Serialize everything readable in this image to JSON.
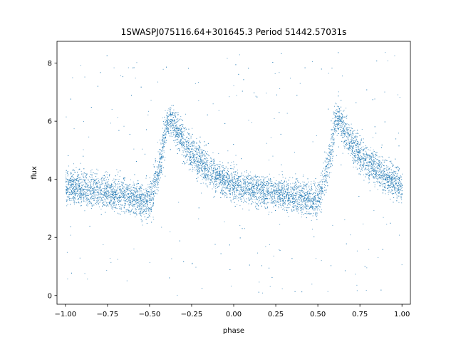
{
  "chart_data": {
    "type": "scatter",
    "title": "1SWASPJ075116.64+301645.3 Period 51442.57031s",
    "xlabel": "phase",
    "ylabel": "flux",
    "xlim": [
      -1.05,
      1.05
    ],
    "ylim": [
      -0.3,
      8.75
    ],
    "x_ticks": [
      {
        "value": -1.0,
        "label": "−1.00"
      },
      {
        "value": -0.75,
        "label": "−0.75"
      },
      {
        "value": -0.5,
        "label": "−0.50"
      },
      {
        "value": -0.25,
        "label": "−0.25"
      },
      {
        "value": 0.0,
        "label": "0.00"
      },
      {
        "value": 0.25,
        "label": "0.25"
      },
      {
        "value": 0.5,
        "label": "0.50"
      },
      {
        "value": 0.75,
        "label": "0.75"
      },
      {
        "value": 1.0,
        "label": "1.00"
      }
    ],
    "y_ticks": [
      {
        "value": 0,
        "label": "0"
      },
      {
        "value": 2,
        "label": "2"
      },
      {
        "value": 4,
        "label": "4"
      },
      {
        "value": 6,
        "label": "6"
      },
      {
        "value": 8,
        "label": "8"
      }
    ],
    "grid": false,
    "legend": "none",
    "series": [
      {
        "color": "#1f77b4",
        "envelope": {
          "phase": [
            -1.0,
            -0.9,
            -0.8,
            -0.7,
            -0.6,
            -0.55,
            -0.5,
            -0.45,
            -0.42,
            -0.4,
            -0.38,
            -0.35,
            -0.3,
            -0.25,
            -0.2,
            -0.1,
            0.0,
            0.1,
            0.2,
            0.3,
            0.4,
            0.45,
            0.5,
            0.55,
            0.58,
            0.6,
            0.62,
            0.65,
            0.7,
            0.75,
            0.8,
            0.9,
            1.0
          ],
          "flux_center": [
            3.8,
            3.7,
            3.6,
            3.5,
            3.4,
            3.3,
            3.3,
            4.3,
            5.2,
            5.9,
            6.1,
            5.8,
            5.3,
            4.9,
            4.6,
            4.1,
            3.8,
            3.7,
            3.6,
            3.5,
            3.4,
            3.3,
            3.3,
            4.3,
            5.2,
            5.9,
            6.1,
            5.8,
            5.3,
            4.9,
            4.6,
            4.1,
            3.8
          ],
          "flux_spread": [
            0.5,
            0.5,
            0.5,
            0.5,
            0.5,
            0.5,
            0.5,
            0.6,
            0.6,
            0.5,
            0.4,
            0.5,
            0.5,
            0.5,
            0.5,
            0.45,
            0.45,
            0.45,
            0.45,
            0.45,
            0.45,
            0.5,
            0.5,
            0.6,
            0.6,
            0.5,
            0.4,
            0.5,
            0.5,
            0.5,
            0.5,
            0.45,
            0.5
          ]
        },
        "approx_point_count": 60000,
        "outlier_range": [
          0.0,
          8.4
        ]
      }
    ]
  }
}
